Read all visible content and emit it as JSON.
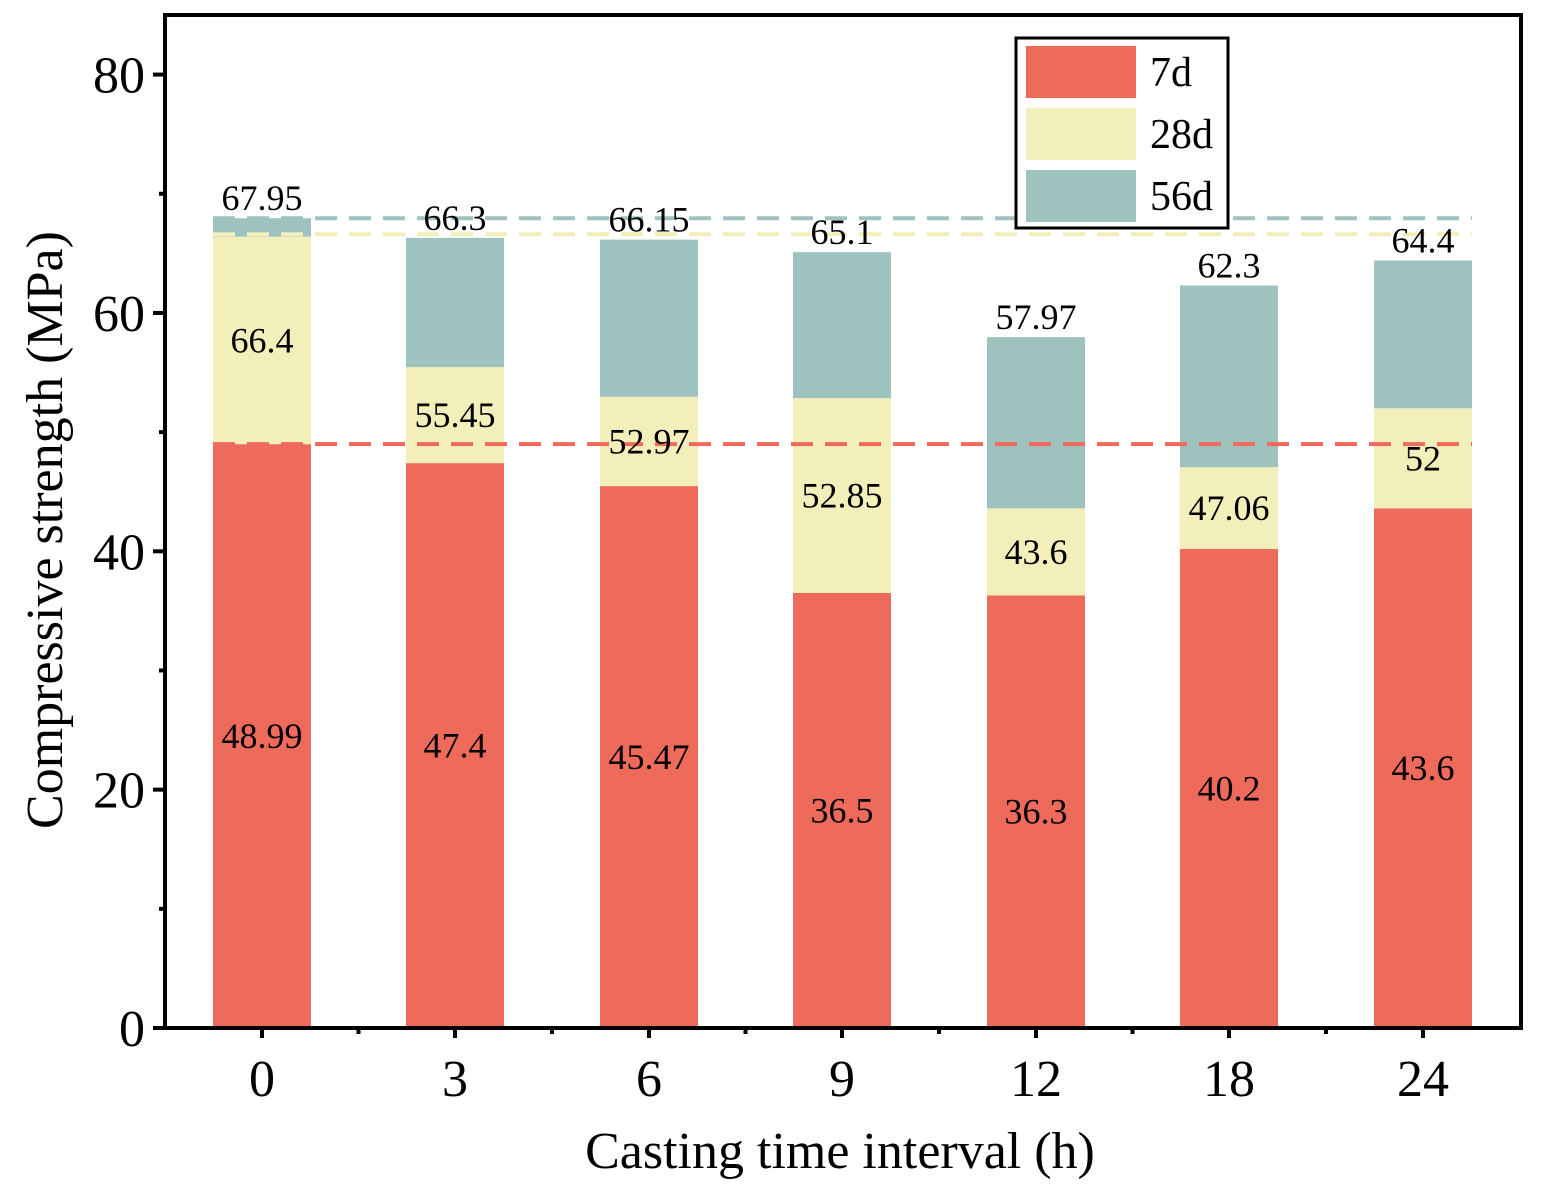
{
  "chart_data": {
    "type": "bar",
    "stacked": true,
    "title": "",
    "xlabel": "Casting time interval (h)",
    "ylabel": "Compressive strength (MPa)",
    "categories": [
      "0",
      "3",
      "6",
      "9",
      "12",
      "18",
      "24"
    ],
    "ylim": [
      0,
      85
    ],
    "yticks": [
      0,
      20,
      40,
      60,
      80
    ],
    "y_minor_step": 10,
    "series": [
      {
        "name": "7d",
        "color": "#EE6A5B",
        "cumulative": [
          48.99,
          47.4,
          45.47,
          36.5,
          36.3,
          40.2,
          43.6
        ]
      },
      {
        "name": "28d",
        "color": "#F3EFBA",
        "cumulative": [
          66.4,
          55.45,
          52.97,
          52.85,
          43.6,
          47.06,
          52
        ]
      },
      {
        "name": "56d",
        "color": "#9EC2BD",
        "cumulative": [
          67.95,
          66.3,
          66.15,
          65.1,
          57.97,
          62.3,
          64.4
        ]
      }
    ],
    "labels": {
      "7d": [
        "48.99",
        "47.4",
        "45.47",
        "36.5",
        "36.3",
        "40.2",
        "43.6"
      ],
      "28d": [
        "66.4",
        "55.45",
        "52.97",
        "52.85",
        "43.6",
        "47.06",
        "52"
      ],
      "56d": [
        "67.95",
        "66.3",
        "66.15",
        "65.1",
        "57.97",
        "62.3",
        "64.4"
      ]
    },
    "reference_lines": [
      {
        "series": "7d",
        "value": 48.99,
        "color": "#EE6A5B"
      },
      {
        "series": "28d",
        "value": 66.6,
        "color": "#F3EFBA"
      },
      {
        "series": "56d",
        "value": 67.95,
        "color": "#9EC2BD"
      }
    ],
    "legend": {
      "position": "top-right",
      "entries": [
        "7d",
        "28d",
        "56d"
      ]
    }
  }
}
